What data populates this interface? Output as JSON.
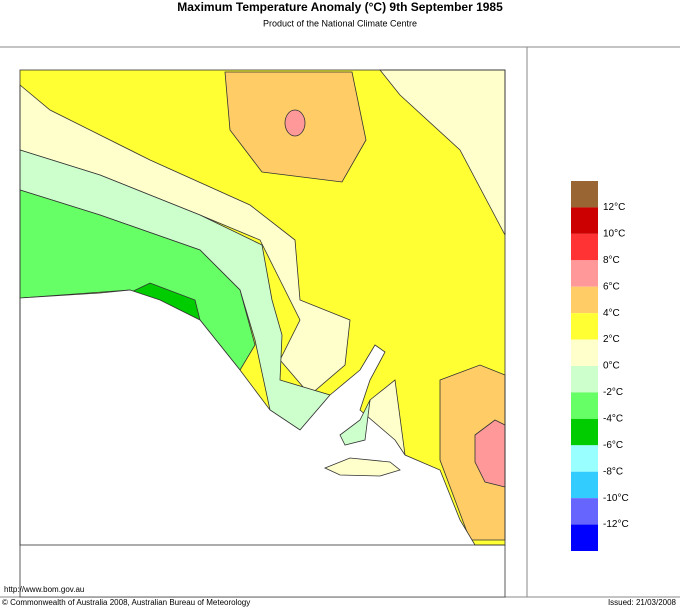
{
  "header": {
    "title": "Maximum Temperature Anomaly (°C)  9th September 1985",
    "subtitle": "Product of the National Climate Centre"
  },
  "legend": {
    "colors": [
      "#996633",
      "#cc0000",
      "#ff3333",
      "#ff9999",
      "#ffcc66",
      "#ffff33",
      "#ffffcc",
      "#ccffcc",
      "#66ff66",
      "#00cc00",
      "#99ffff",
      "#33ccff",
      "#6666ff",
      "#0000ff"
    ],
    "labels": [
      "12°C",
      "10°C",
      "8°C",
      "6°C",
      "4°C",
      "2°C",
      "0°C",
      "-2°C",
      "-4°C",
      "-6°C",
      "-8°C",
      "-10°C",
      "-12°C"
    ]
  },
  "footer": {
    "url": "http://www.bom.gov.au",
    "copyright": "© Commonwealth of Australia 2008, Australian Bureau of Meteorology",
    "issued": "Issued: 21/03/2008"
  }
}
